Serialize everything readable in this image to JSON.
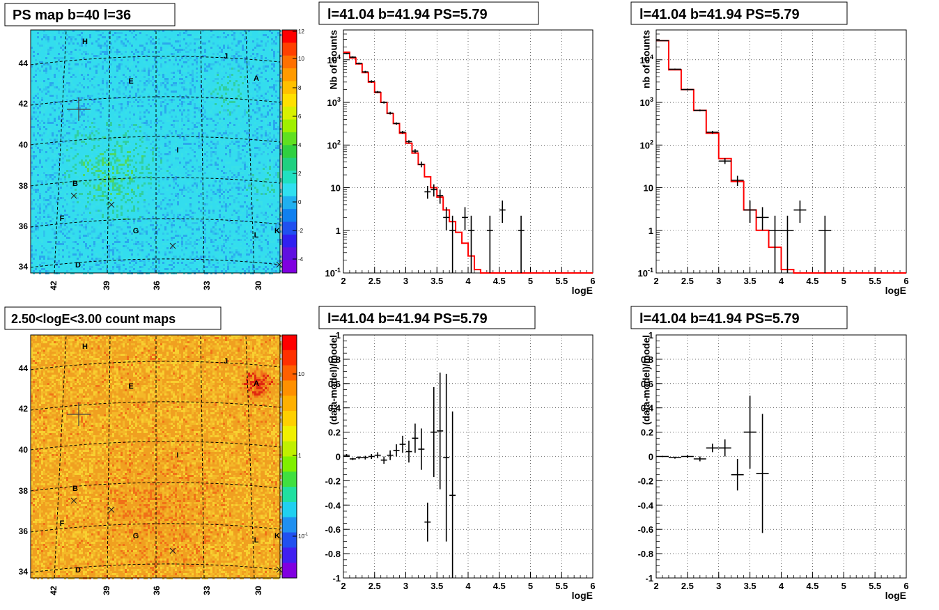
{
  "pad_titles": {
    "psmap": "PS map b=40 l=36",
    "countmap": "2.50<logE<3.00 count maps",
    "spec1": "l=41.04 b=41.94 PS=5.79",
    "spec2": "l=41.04 b=41.94 PS=5.79",
    "resid1": "l=41.04 b=41.94 PS=5.79",
    "resid2": "l=41.04 b=41.94 PS=5.79"
  },
  "maps": {
    "lon_ticks": [
      "42",
      "39",
      "36",
      "33",
      "30"
    ],
    "lat_ticks": [
      "44",
      "42",
      "40",
      "38",
      "36",
      "34"
    ],
    "sources": [
      "H",
      "J",
      "E",
      "A",
      "I",
      "B",
      "F",
      "G",
      "L",
      "K",
      "D"
    ],
    "psmap_palette_ticks": [
      "12",
      "10",
      "8",
      "6",
      "4",
      "2",
      "0",
      "-2",
      "-4"
    ],
    "countmap_palette_ticks": [
      "10",
      "1",
      "10-1"
    ],
    "colors": {
      "psmap_base": "#33ddee",
      "countmap_base": "#f0a020"
    }
  },
  "chart_data": [
    {
      "id": "spec1",
      "type": "line",
      "title": "l=41.04 b=41.94 PS=5.79",
      "xlabel": "logE",
      "ylabel": "Nb of counts",
      "xlim": [
        2,
        6
      ],
      "ylim": [
        0.1,
        50000
      ],
      "log_y": true,
      "grid": true,
      "x_ticks": [
        "2",
        "2.5",
        "3",
        "3.5",
        "4",
        "4.5",
        "5",
        "5.5",
        "6"
      ],
      "y_ticks": [
        "10^4",
        "10^3",
        "10^2",
        "10",
        "1",
        "10^-1"
      ],
      "model_color": "#ff0000",
      "model": {
        "edges": [
          2.0,
          2.1,
          2.2,
          2.3,
          2.4,
          2.5,
          2.6,
          2.7,
          2.8,
          2.9,
          3.0,
          3.1,
          3.2,
          3.3,
          3.4,
          3.5,
          3.6,
          3.7,
          3.8,
          3.9,
          4.0,
          4.1,
          4.2,
          6.0
        ],
        "values": [
          15000,
          11000,
          8000,
          5000,
          3000,
          1700,
          1000,
          550,
          320,
          190,
          110,
          65,
          35,
          18,
          10,
          6,
          3,
          1.6,
          0.9,
          0.5,
          0.25,
          0.12,
          0.09
        ]
      },
      "points": [
        {
          "x": 2.05,
          "y": 14000,
          "yl": 13500,
          "yh": 14500
        },
        {
          "x": 2.15,
          "y": 11500,
          "yl": 11000,
          "yh": 12000
        },
        {
          "x": 2.25,
          "y": 8200,
          "yl": 7800,
          "yh": 8600
        },
        {
          "x": 2.35,
          "y": 5200,
          "yl": 4900,
          "yh": 5500
        },
        {
          "x": 2.45,
          "y": 3100,
          "yl": 2900,
          "yh": 3300
        },
        {
          "x": 2.55,
          "y": 1750,
          "yl": 1650,
          "yh": 1850
        },
        {
          "x": 2.65,
          "y": 1000,
          "yl": 940,
          "yh": 1060
        },
        {
          "x": 2.75,
          "y": 560,
          "yl": 520,
          "yh": 600
        },
        {
          "x": 2.85,
          "y": 320,
          "yl": 300,
          "yh": 340
        },
        {
          "x": 2.95,
          "y": 200,
          "yl": 185,
          "yh": 215
        },
        {
          "x": 3.05,
          "y": 120,
          "yl": 110,
          "yh": 130
        },
        {
          "x": 3.15,
          "y": 72,
          "yl": 64,
          "yh": 80
        },
        {
          "x": 3.25,
          "y": 35,
          "yl": 30,
          "yh": 41
        },
        {
          "x": 3.35,
          "y": 8,
          "yl": 5.5,
          "yh": 11
        },
        {
          "x": 3.45,
          "y": 9,
          "yl": 6.2,
          "yh": 12
        },
        {
          "x": 3.55,
          "y": 6.5,
          "yl": 4.2,
          "yh": 9
        },
        {
          "x": 3.65,
          "y": 2,
          "yl": 1,
          "yh": 3.5
        },
        {
          "x": 3.75,
          "y": 1,
          "yl": 0.1,
          "yh": 2.2
        },
        {
          "x": 3.95,
          "y": 2,
          "yl": 1,
          "yh": 3.5
        },
        {
          "x": 4.05,
          "y": 1,
          "yl": 0.1,
          "yh": 2.2
        },
        {
          "x": 4.35,
          "y": 1,
          "yl": 0.1,
          "yh": 2.2
        },
        {
          "x": 4.55,
          "y": 3,
          "yl": 1.5,
          "yh": 5
        },
        {
          "x": 4.85,
          "y": 1,
          "yl": 0.1,
          "yh": 2.2
        }
      ]
    },
    {
      "id": "spec2",
      "type": "line",
      "title": "l=41.04 b=41.94 PS=5.79",
      "xlabel": "logE",
      "ylabel": "nb of counts",
      "xlim": [
        2,
        6
      ],
      "ylim": [
        0.1,
        50000
      ],
      "log_y": true,
      "grid": true,
      "x_ticks": [
        "2",
        "2.5",
        "3",
        "3.5",
        "4",
        "4.5",
        "5",
        "5.5",
        "6"
      ],
      "y_ticks": [
        "10^4",
        "10^3",
        "10^2",
        "10",
        "1",
        "10^-1"
      ],
      "model_color": "#ff0000",
      "model": {
        "edges": [
          2.0,
          2.2,
          2.4,
          2.6,
          2.8,
          3.0,
          3.2,
          3.4,
          3.6,
          3.8,
          4.0,
          4.2,
          6.0
        ],
        "values": [
          28000,
          5800,
          2000,
          650,
          190,
          48,
          14,
          3,
          1,
          0.4,
          0.12,
          0.09
        ]
      },
      "points": [
        {
          "x": 2.1,
          "y": 28000,
          "yl": 27500,
          "yh": 28500
        },
        {
          "x": 2.3,
          "y": 6000,
          "yl": 5800,
          "yh": 6200
        },
        {
          "x": 2.5,
          "y": 2000,
          "yl": 1900,
          "yh": 2100
        },
        {
          "x": 2.7,
          "y": 650,
          "yl": 620,
          "yh": 680
        },
        {
          "x": 2.9,
          "y": 200,
          "yl": 185,
          "yh": 215
        },
        {
          "x": 3.1,
          "y": 42,
          "yl": 36,
          "yh": 49
        },
        {
          "x": 3.3,
          "y": 15,
          "yl": 11,
          "yh": 19
        },
        {
          "x": 3.5,
          "y": 3,
          "yl": 1.5,
          "yh": 5
        },
        {
          "x": 3.7,
          "y": 2,
          "yl": 1,
          "yh": 3.5
        },
        {
          "x": 3.9,
          "y": 1,
          "yl": 0.1,
          "yh": 2.2
        },
        {
          "x": 4.1,
          "y": 1,
          "yl": 0.1,
          "yh": 2.2
        },
        {
          "x": 4.3,
          "y": 3,
          "yl": 1.5,
          "yh": 5
        },
        {
          "x": 4.7,
          "y": 1,
          "yl": 0.1,
          "yh": 2.2
        }
      ]
    },
    {
      "id": "resid1",
      "type": "scatter",
      "title": "l=41.04 b=41.94 PS=5.79",
      "xlabel": "logE",
      "ylabel": "(data-model)/model",
      "xlim": [
        2,
        6
      ],
      "ylim": [
        -1,
        1
      ],
      "grid": true,
      "x_ticks": [
        "2",
        "2.5",
        "3",
        "3.5",
        "4",
        "4.5",
        "5",
        "5.5",
        "6"
      ],
      "y_ticks": [
        "1",
        "0.8",
        "0.6",
        "0.4",
        "0.2",
        "0",
        "-0.2",
        "-0.4",
        "-0.6",
        "-0.8",
        "-1"
      ],
      "points": [
        {
          "x": 2.05,
          "y": 0.01,
          "e": 0.01
        },
        {
          "x": 2.15,
          "y": -0.02,
          "e": 0.01
        },
        {
          "x": 2.25,
          "y": -0.01,
          "e": 0.012
        },
        {
          "x": 2.35,
          "y": -0.01,
          "e": 0.015
        },
        {
          "x": 2.45,
          "y": 0.0,
          "e": 0.02
        },
        {
          "x": 2.55,
          "y": 0.01,
          "e": 0.025
        },
        {
          "x": 2.65,
          "y": -0.03,
          "e": 0.03
        },
        {
          "x": 2.75,
          "y": 0.01,
          "e": 0.04
        },
        {
          "x": 2.85,
          "y": 0.05,
          "e": 0.05
        },
        {
          "x": 2.95,
          "y": 0.1,
          "e": 0.07
        },
        {
          "x": 3.05,
          "y": 0.04,
          "e": 0.09
        },
        {
          "x": 3.15,
          "y": 0.15,
          "e": 0.12
        },
        {
          "x": 3.25,
          "y": 0.06,
          "e": 0.17
        },
        {
          "x": 3.35,
          "y": -0.54,
          "e": 0.16
        },
        {
          "x": 3.45,
          "y": 0.2,
          "e": 0.37
        },
        {
          "x": 3.55,
          "y": 0.21,
          "e": 0.48
        },
        {
          "x": 3.65,
          "y": -0.01,
          "e": 0.69
        },
        {
          "x": 3.75,
          "y": -0.32,
          "e": 0.69
        }
      ]
    },
    {
      "id": "resid2",
      "type": "scatter",
      "title": "l=41.04 b=41.94 PS=5.79",
      "xlabel": "logE",
      "ylabel": "(data-model)/model",
      "xlim": [
        2,
        6
      ],
      "ylim": [
        -1,
        1
      ],
      "grid": true,
      "x_ticks": [
        "2",
        "2.5",
        "3",
        "3.5",
        "4",
        "4.5",
        "5",
        "5.5",
        "6"
      ],
      "y_ticks": [
        "1",
        "0.8",
        "0.6",
        "0.4",
        "0.2",
        "0",
        "-0.2",
        "-0.4",
        "-0.6",
        "-0.8",
        "-1"
      ],
      "points": [
        {
          "x": 2.1,
          "y": 0.0,
          "e": 0.005
        },
        {
          "x": 2.3,
          "y": -0.01,
          "e": 0.008
        },
        {
          "x": 2.5,
          "y": 0.0,
          "e": 0.012
        },
        {
          "x": 2.7,
          "y": -0.02,
          "e": 0.02
        },
        {
          "x": 2.9,
          "y": 0.07,
          "e": 0.035
        },
        {
          "x": 3.1,
          "y": 0.07,
          "e": 0.07
        },
        {
          "x": 3.3,
          "y": -0.15,
          "e": 0.13
        },
        {
          "x": 3.5,
          "y": 0.2,
          "e": 0.3
        },
        {
          "x": 3.7,
          "y": -0.14,
          "e": 0.49
        }
      ]
    }
  ]
}
